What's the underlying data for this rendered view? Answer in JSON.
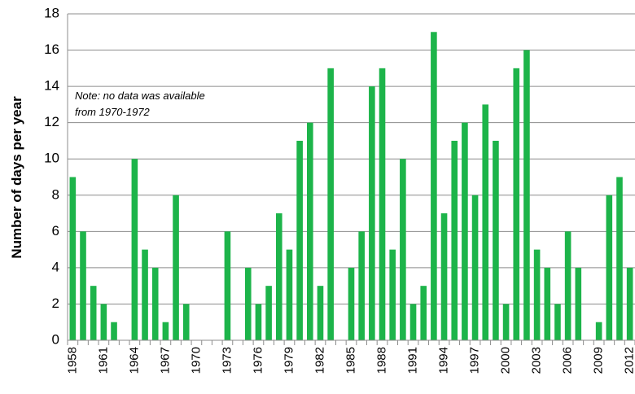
{
  "chart_data": {
    "type": "bar",
    "y_label": "Number of days per year",
    "annotation": [
      "Note: no data was available",
      "from 1970-1972"
    ],
    "categories": [
      "1958",
      null,
      null,
      "1961",
      null,
      null,
      "1964",
      null,
      null,
      "1967",
      null,
      null,
      "1970",
      null,
      null,
      "1973",
      null,
      null,
      "1976",
      null,
      null,
      "1979",
      null,
      null,
      "1982",
      null,
      null,
      "1985",
      null,
      null,
      "1988",
      null,
      null,
      "1991",
      null,
      null,
      "1994",
      null,
      null,
      "1997",
      null,
      null,
      "2000",
      null,
      null,
      "2003",
      null,
      null,
      "2006",
      null,
      null,
      "2009",
      null,
      null,
      "2012"
    ],
    "values": [
      9,
      6,
      3,
      2,
      1,
      0,
      10,
      5,
      4,
      1,
      8,
      2,
      null,
      null,
      null,
      6,
      0,
      4,
      2,
      3,
      7,
      5,
      11,
      12,
      3,
      15,
      0,
      4,
      6,
      14,
      15,
      5,
      10,
      2,
      3,
      17,
      7,
      11,
      12,
      8,
      13,
      11,
      2,
      15,
      16,
      5,
      4,
      2,
      6,
      4,
      0,
      1,
      8,
      9,
      4
    ],
    "color": "#1db44a",
    "ylim": [
      0,
      18
    ],
    "yticks": [
      0,
      2,
      4,
      6,
      8,
      10,
      12,
      14,
      16,
      18
    ],
    "grid": true
  }
}
